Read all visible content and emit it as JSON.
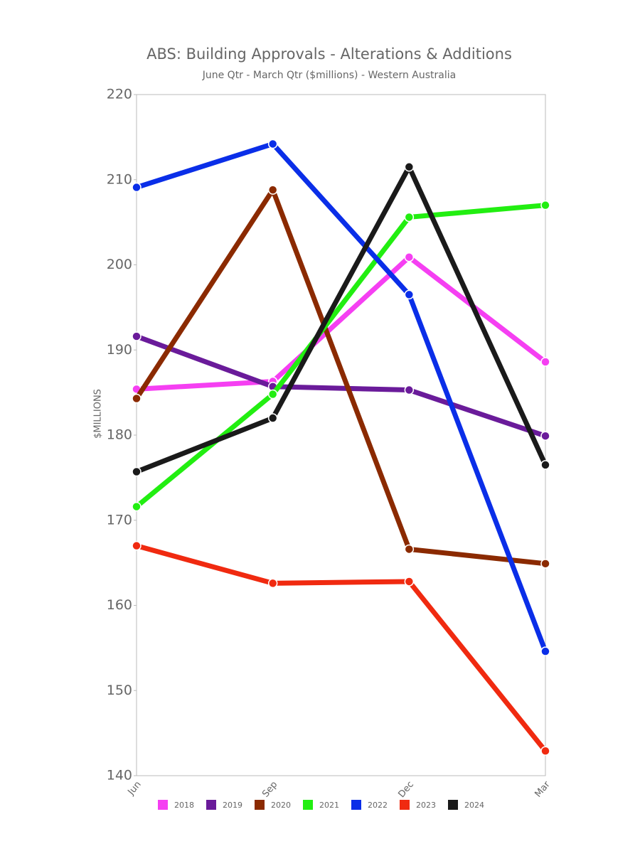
{
  "chart_data": {
    "type": "line",
    "title": "ABS: Building Approvals - Alterations & Additions",
    "subtitle": "June Qtr - March Qtr ($millions) - Western Australia",
    "y_label": "$MILLIONS",
    "categories": [
      "Jun",
      "Sep",
      "Dec",
      "Mar"
    ],
    "series": [
      {
        "name": "2018",
        "color": "#f53ff2",
        "values": [
          185.4,
          186.3,
          200.9,
          188.6
        ]
      },
      {
        "name": "2019",
        "color": "#6a1b9a",
        "values": [
          191.6,
          185.7,
          185.3,
          179.9
        ]
      },
      {
        "name": "2020",
        "color": "#8b2a00",
        "values": [
          184.3,
          208.8,
          166.6,
          164.9
        ]
      },
      {
        "name": "2021",
        "color": "#22ee11",
        "values": [
          171.6,
          184.8,
          205.6,
          207.0
        ]
      },
      {
        "name": "2022",
        "color": "#0a2ee8",
        "values": [
          209.1,
          214.2,
          196.5,
          154.6
        ]
      },
      {
        "name": "2023",
        "color": "#f02a10",
        "values": [
          167.0,
          162.6,
          162.8,
          142.9
        ]
      },
      {
        "name": "2024",
        "color": "#1a1a1a",
        "values": [
          175.7,
          182.0,
          211.5,
          176.5
        ]
      }
    ],
    "ylim": [
      140,
      220
    ],
    "yticks": [
      140,
      150,
      160,
      170,
      180,
      190,
      200,
      210,
      220
    ]
  }
}
